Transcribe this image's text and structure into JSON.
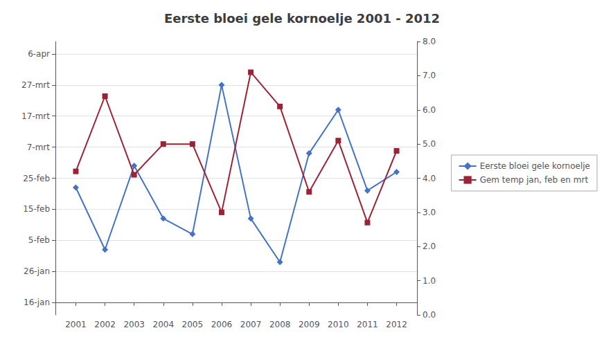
{
  "chart_data": {
    "type": "line",
    "title": "Eerste bloei gele kornoelje 2001 - 2012",
    "x": [
      2001,
      2002,
      2003,
      2004,
      2005,
      2006,
      2007,
      2008,
      2009,
      2010,
      2011,
      2012
    ],
    "xlim": [
      2000.3,
      2012.7
    ],
    "xticks": [
      2001,
      2002,
      2003,
      2004,
      2005,
      2006,
      2007,
      2008,
      2009,
      2010,
      2011,
      2012
    ],
    "series": [
      {
        "name": "Eerste bloei gele kornoelje",
        "color": "#4472C4",
        "marker": "diamond",
        "values": [
          37,
          17,
          44,
          27,
          22,
          70,
          27,
          13,
          48,
          62,
          36,
          42
        ]
      },
      {
        "name": "Gem temp jan, feb en mrt",
        "color": "#9B2335",
        "marker": "square",
        "axis": "y2",
        "values": [
          4.2,
          6.4,
          4.1,
          5.0,
          5.0,
          3.0,
          7.1,
          6.1,
          3.6,
          5.1,
          2.7,
          4.8
        ]
      }
    ],
    "ylim": [
      -4,
      84
    ],
    "yticks": [
      {
        "value": 0,
        "label": "16-jan"
      },
      {
        "value": 10,
        "label": "26-jan"
      },
      {
        "value": 20,
        "label": "5-feb"
      },
      {
        "value": 30,
        "label": "15-feb"
      },
      {
        "value": 40,
        "label": "25-feb"
      },
      {
        "value": 50,
        "label": "7-mrt"
      },
      {
        "value": 60,
        "label": "17-mrt"
      },
      {
        "value": 70,
        "label": "27-mrt"
      },
      {
        "value": 80,
        "label": "6-apr"
      }
    ],
    "y2lim": [
      0.0,
      8.0
    ],
    "y2ticks": [
      {
        "value": 0,
        "label": "0.0"
      },
      {
        "value": 1,
        "label": "1.0"
      },
      {
        "value": 2,
        "label": "2.0"
      },
      {
        "value": 3,
        "label": "3.0"
      },
      {
        "value": 4,
        "label": "4.0"
      },
      {
        "value": 5,
        "label": "5.0"
      },
      {
        "value": 6,
        "label": "6.0"
      },
      {
        "value": 7,
        "label": "7.0"
      },
      {
        "value": 8,
        "label": "8.0"
      }
    ],
    "grid": true,
    "legend": "right"
  }
}
